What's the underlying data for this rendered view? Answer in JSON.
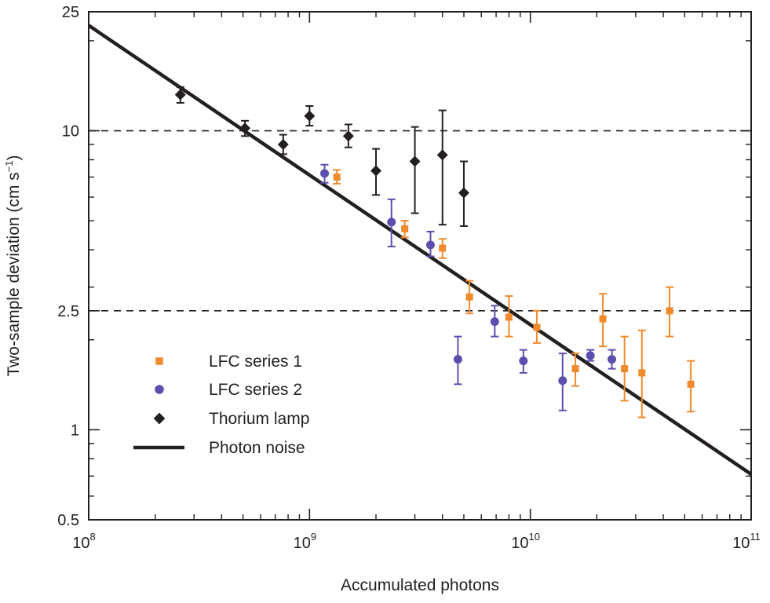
{
  "chart_data": {
    "type": "scatter",
    "x_scale": "log",
    "y_scale": "log",
    "xlabel": "Accumulated photons",
    "ylabel": {
      "text": "Two-sample deviation (cm s",
      "exponent": "−1",
      "suffix": ")"
    },
    "xlim": [
      100000000,
      100000000000
    ],
    "ylim": [
      0.5,
      25
    ],
    "x_ticks": [
      {
        "value": 100000000,
        "base": "10",
        "exponent": "8"
      },
      {
        "value": 1000000000,
        "base": "10",
        "exponent": "9"
      },
      {
        "value": 10000000000,
        "base": "10",
        "exponent": "10"
      },
      {
        "value": 100000000000,
        "base": "10",
        "exponent": "11"
      }
    ],
    "y_ticks": [
      {
        "value": 0.5,
        "label": "0.5"
      },
      {
        "value": 1,
        "label": "1"
      },
      {
        "value": 2.5,
        "label": "2.5"
      },
      {
        "value": 10,
        "label": "10"
      },
      {
        "value": 25,
        "label": "25"
      }
    ],
    "reference_lines": [
      10,
      2.5
    ],
    "colors": {
      "lfc1": "#f08a2c",
      "lfc2": "#5b4fae",
      "thorium": "#231f20",
      "photon": "#231f20"
    },
    "photon_noise": {
      "name": "Photon noise",
      "x": [
        100000000,
        100000000000
      ],
      "y": [
        22.5,
        0.71
      ]
    },
    "series": [
      {
        "name": "LFC series 1",
        "marker": "square",
        "color": "#f08a2c",
        "points": [
          {
            "x": 1330000000,
            "y": 7.0,
            "lo": 6.65,
            "hi": 7.4
          },
          {
            "x": 2700000000,
            "y": 4.7,
            "lo": 4.4,
            "hi": 5.0
          },
          {
            "x": 4000000000,
            "y": 4.05,
            "lo": 3.75,
            "hi": 4.35
          },
          {
            "x": 5300000000,
            "y": 2.78,
            "lo": 2.45,
            "hi": 3.15
          },
          {
            "x": 8000000000,
            "y": 2.38,
            "lo": 2.05,
            "hi": 2.8
          },
          {
            "x": 10700000000,
            "y": 2.2,
            "lo": 1.95,
            "hi": 2.5
          },
          {
            "x": 16000000000,
            "y": 1.6,
            "lo": 1.4,
            "hi": 1.8
          },
          {
            "x": 21300000000,
            "y": 2.35,
            "lo": 1.9,
            "hi": 2.85
          },
          {
            "x": 26700000000,
            "y": 1.6,
            "lo": 1.25,
            "hi": 2.05
          },
          {
            "x": 32000000000,
            "y": 1.55,
            "lo": 1.1,
            "hi": 2.15
          },
          {
            "x": 42700000000,
            "y": 2.5,
            "lo": 2.05,
            "hi": 3.0
          },
          {
            "x": 53300000000,
            "y": 1.42,
            "lo": 1.15,
            "hi": 1.7
          }
        ]
      },
      {
        "name": "LFC series 2",
        "marker": "circle",
        "color": "#5b4fae",
        "points": [
          {
            "x": 1170000000,
            "y": 7.2,
            "lo": 6.7,
            "hi": 7.7
          },
          {
            "x": 2350000000,
            "y": 4.95,
            "lo": 4.1,
            "hi": 5.9
          },
          {
            "x": 3530000000,
            "y": 4.15,
            "lo": 3.8,
            "hi": 4.6
          },
          {
            "x": 4700000000,
            "y": 1.72,
            "lo": 1.42,
            "hi": 2.05
          },
          {
            "x": 6900000000,
            "y": 2.3,
            "lo": 2.05,
            "hi": 2.6
          },
          {
            "x": 9300000000,
            "y": 1.7,
            "lo": 1.55,
            "hi": 1.85
          },
          {
            "x": 14000000000,
            "y": 1.46,
            "lo": 1.16,
            "hi": 1.8
          },
          {
            "x": 18700000000,
            "y": 1.77,
            "lo": 1.7,
            "hi": 1.85
          },
          {
            "x": 23400000000,
            "y": 1.72,
            "lo": 1.6,
            "hi": 1.85
          }
        ]
      },
      {
        "name": "Thorium lamp",
        "marker": "diamond",
        "color": "#231f20",
        "points": [
          {
            "x": 260000000,
            "y": 13.2,
            "lo": 12.4,
            "hi": 14.0
          },
          {
            "x": 510000000,
            "y": 10.2,
            "lo": 9.6,
            "hi": 10.8
          },
          {
            "x": 760000000,
            "y": 9.0,
            "lo": 8.35,
            "hi": 9.7
          },
          {
            "x": 1000000000,
            "y": 11.2,
            "lo": 10.4,
            "hi": 12.1
          },
          {
            "x": 1500000000,
            "y": 9.6,
            "lo": 8.8,
            "hi": 10.5
          },
          {
            "x": 2000000000,
            "y": 7.35,
            "lo": 6.1,
            "hi": 8.7
          },
          {
            "x": 3000000000,
            "y": 7.9,
            "lo": 5.3,
            "hi": 10.3
          },
          {
            "x": 4000000000,
            "y": 8.3,
            "lo": 4.85,
            "hi": 11.7
          },
          {
            "x": 5000000000,
            "y": 6.2,
            "lo": 4.8,
            "hi": 7.9
          }
        ]
      }
    ],
    "legend": {
      "position": "bottom-left",
      "entries": [
        {
          "label": "LFC series 1",
          "marker": "square",
          "color": "#f08a2c"
        },
        {
          "label": "LFC series 2",
          "marker": "circle",
          "color": "#5b4fae"
        },
        {
          "label": "Thorium lamp",
          "marker": "diamond",
          "color": "#231f20"
        },
        {
          "label": "Photon noise",
          "marker": "line",
          "color": "#231f20"
        }
      ]
    }
  }
}
